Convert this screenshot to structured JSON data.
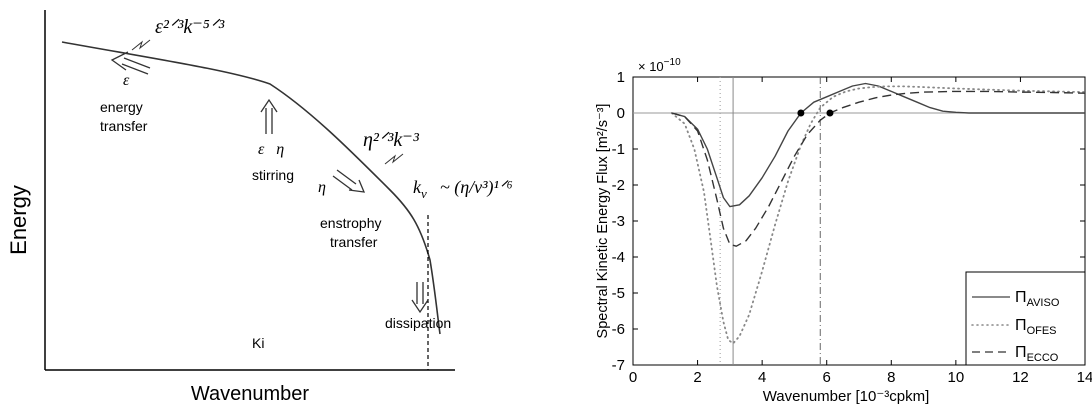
{
  "chart_data": [
    {
      "type": "line",
      "xlabel": "Wavenumber",
      "ylabel": "Energy",
      "labels": {
        "eps_k53": "ε²ᐟ³k⁻⁵ᐟ³",
        "eps": "ε",
        "energy_transfer_1": "energy",
        "energy_transfer_2": "transfer",
        "eps_eta": "ε   η",
        "stirring": "stirring",
        "eta_k3": "η²ᐟ³k⁻³",
        "eta": "η",
        "enstrophy_1": "enstrophy",
        "enstrophy_2": "transfer",
        "k_nu": "k",
        "k_nu_sub": "ν",
        "k_nu_formula": "~ (η/ν³)¹ᐟ⁶",
        "dissipation": "dissipation",
        "ki": "Ki"
      }
    },
    {
      "type": "line",
      "xlabel": "Wavenumber [10⁻³cpkm]",
      "ylabel": "Spectral Kinetic Energy Flux [m²/s⁻³]",
      "multiplier": "× 10",
      "multiplier_exp": "−10",
      "xlim": [
        0,
        14
      ],
      "ylim": [
        -7,
        1
      ],
      "xticks": [
        "0",
        "2",
        "4",
        "6",
        "8",
        "10",
        "12",
        "14"
      ],
      "yticks": [
        "1",
        "0",
        "-1",
        "-2",
        "-3",
        "-4",
        "-5",
        "-6",
        "-7"
      ],
      "vlines": [
        2.7,
        3.1,
        5.8
      ],
      "points": [
        [
          5.2,
          0
        ],
        [
          6.1,
          0
        ]
      ],
      "series": [
        {
          "name": "Π",
          "name_sub": "AVISO",
          "style": "solid",
          "x": [
            1.2,
            1.6,
            2.0,
            2.3,
            2.6,
            2.8,
            3.0,
            3.3,
            3.6,
            4.0,
            4.4,
            4.8,
            5.2,
            5.6,
            6.0,
            6.4,
            6.8,
            7.2,
            7.6,
            8.0,
            8.4,
            8.8,
            9.2,
            9.6,
            10.0,
            10.4,
            11.0,
            12.0,
            14.0
          ],
          "y": [
            0,
            -0.1,
            -0.45,
            -1.0,
            -1.8,
            -2.35,
            -2.6,
            -2.55,
            -2.3,
            -1.8,
            -1.2,
            -0.5,
            0.0,
            0.3,
            0.45,
            0.6,
            0.75,
            0.82,
            0.75,
            0.6,
            0.45,
            0.3,
            0.15,
            0.05,
            0.02,
            0.0,
            0.0,
            0.0,
            0.0
          ]
        },
        {
          "name": "Π",
          "name_sub": "OFES",
          "style": "dotted",
          "x": [
            1.2,
            1.6,
            1.9,
            2.2,
            2.4,
            2.6,
            2.8,
            2.95,
            3.1,
            3.3,
            3.6,
            4.0,
            4.4,
            4.8,
            5.2,
            5.5,
            5.8,
            6.2,
            6.6,
            7.0,
            7.4,
            7.8,
            8.4,
            9.0,
            10.0,
            11.0,
            12.0,
            14.0
          ],
          "y": [
            0,
            -0.3,
            -1.0,
            -2.2,
            -3.5,
            -4.8,
            -5.8,
            -6.3,
            -6.4,
            -6.2,
            -5.6,
            -4.4,
            -3.1,
            -1.9,
            -0.9,
            -0.3,
            0.15,
            0.45,
            0.6,
            0.68,
            0.72,
            0.74,
            0.74,
            0.72,
            0.68,
            0.65,
            0.62,
            0.58
          ]
        },
        {
          "name": "Π",
          "name_sub": "ECCO",
          "style": "dashed",
          "x": [
            1.2,
            1.6,
            2.0,
            2.3,
            2.6,
            2.8,
            3.0,
            3.2,
            3.5,
            3.8,
            4.2,
            4.6,
            5.0,
            5.4,
            5.8,
            6.1,
            6.5,
            7.0,
            7.5,
            8.0,
            8.5,
            9.0,
            10.0,
            11.0,
            12.0,
            13.0,
            14.0
          ],
          "y": [
            0,
            -0.1,
            -0.5,
            -1.3,
            -2.4,
            -3.2,
            -3.65,
            -3.7,
            -3.55,
            -3.2,
            -2.6,
            -1.9,
            -1.2,
            -0.6,
            -0.2,
            0.0,
            0.15,
            0.3,
            0.42,
            0.5,
            0.55,
            0.58,
            0.6,
            0.6,
            0.58,
            0.57,
            0.55
          ]
        }
      ]
    }
  ]
}
